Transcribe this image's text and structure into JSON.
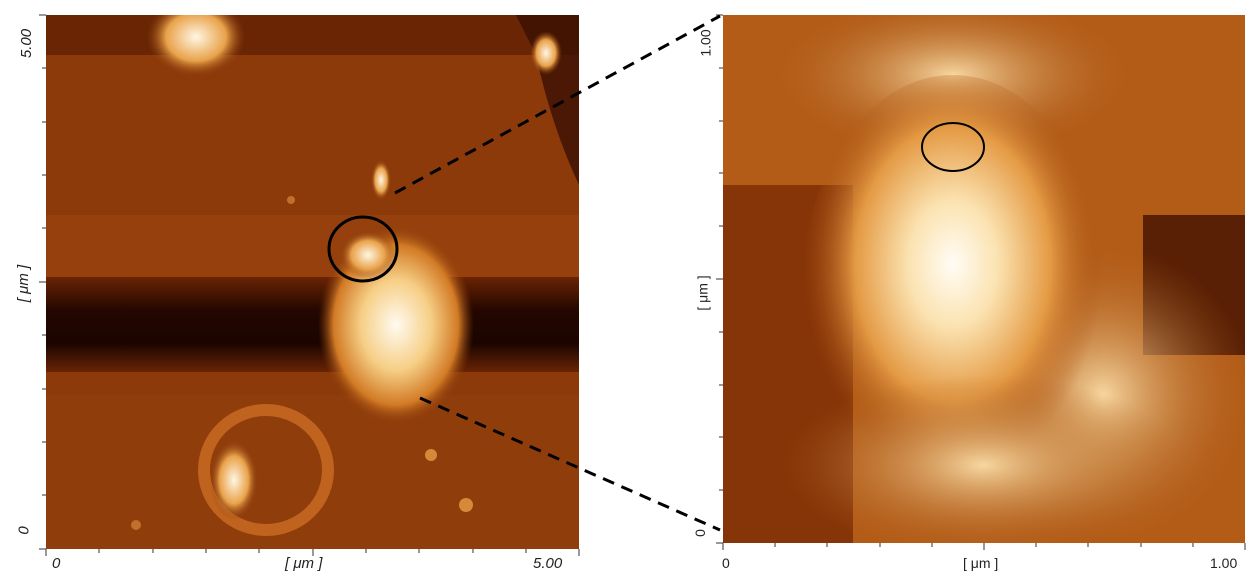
{
  "left_scan": {
    "x_axis": {
      "min_label": "0",
      "max_label": "5.00",
      "unit_label": "[ μm ]"
    },
    "y_axis": {
      "min_label": "0",
      "max_label": "5.00",
      "unit_label": "[ μm ]"
    }
  },
  "right_scan": {
    "x_axis": {
      "min_label": "0",
      "max_label": "1.00",
      "unit_label": "[ μm ]"
    },
    "y_axis": {
      "min_label": "0",
      "max_label": "1.00",
      "unit_label": "[ μm ]"
    }
  },
  "colors": {
    "colormap_dark": "#1a0500",
    "colormap_mid": "#b4561a",
    "colormap_bright": "#fff4e0"
  }
}
